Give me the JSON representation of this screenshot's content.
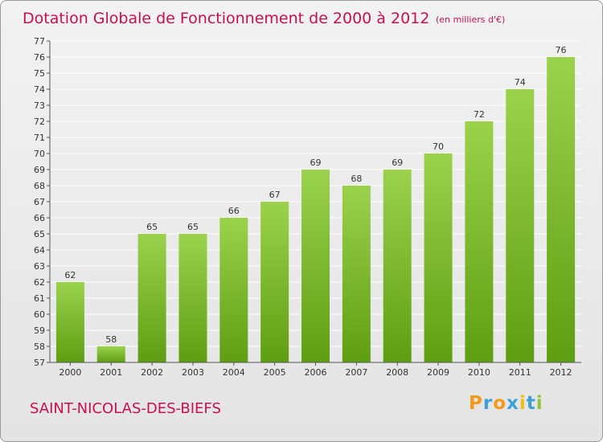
{
  "chart_data": {
    "type": "bar",
    "title": "Dotation Globale de Fonctionnement de 2000 à 2012",
    "subtitle": "(en milliers d'€)",
    "categories": [
      "2000",
      "2001",
      "2002",
      "2003",
      "2004",
      "2005",
      "2006",
      "2007",
      "2008",
      "2009",
      "2010",
      "2011",
      "2012"
    ],
    "values": [
      62,
      58,
      65,
      65,
      66,
      67,
      69,
      68,
      69,
      70,
      72,
      74,
      76
    ],
    "ylim": [
      57,
      77
    ],
    "yticks": [
      57,
      58,
      59,
      60,
      61,
      62,
      63,
      64,
      65,
      66,
      67,
      68,
      69,
      70,
      71,
      72,
      73,
      74,
      75,
      76,
      77
    ],
    "grid": true,
    "bar_color": "#7fbf2a",
    "xlabel": "",
    "ylabel": ""
  },
  "commune": "SAINT-NICOLAS-DES-BIEFS",
  "brand": {
    "text": "Proxiti",
    "letter_colors": [
      "#f39a1a",
      "#3aa0d8",
      "#f39a1a",
      "#3aa0d8",
      "#e8c016",
      "#3aa0d8",
      "#8cc63f"
    ]
  },
  "colors": {
    "accent": "#c8104f",
    "grid": "#ffffff",
    "axis": "#555555"
  }
}
